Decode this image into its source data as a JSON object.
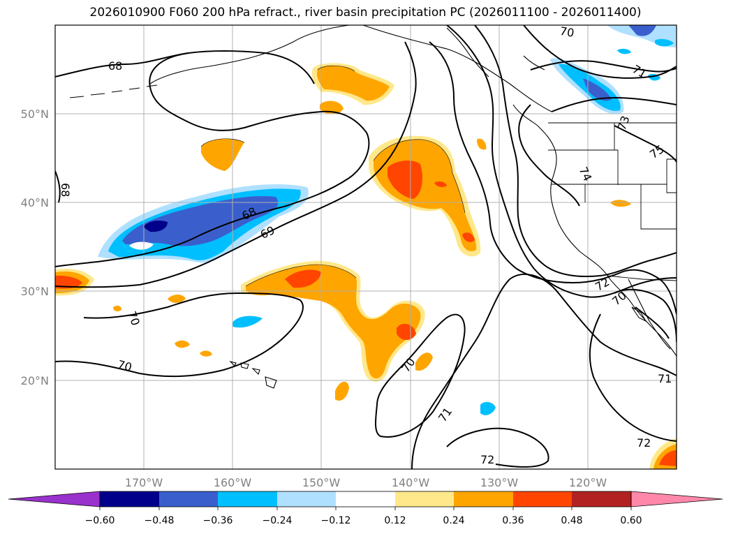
{
  "title": "2026010900 F060 200 hPa refract., river basin precipitation PC (2026011100 - 2026011400)",
  "colors": {
    "neg_060": "#9932cc",
    "neg_048": "#00008b",
    "neg_036": "#3a5fcd",
    "neg_024": "#00bfff",
    "neg_012": "#b0e0ff",
    "zero": "#ffffff",
    "pos_012": "#ffe88a",
    "pos_024": "#ffa500",
    "pos_036": "#ff4500",
    "pos_048": "#b22222",
    "pos_060": "#ff88aa",
    "contour": "#000000",
    "coast": "#000000",
    "grid": "#b0b0b0"
  },
  "axes": {
    "lat_labels": [
      "50°N",
      "40°N",
      "30°N",
      "20°N"
    ],
    "lon_labels": [
      "170°W",
      "160°W",
      "150°W",
      "140°W",
      "130°W",
      "120°W"
    ]
  },
  "contour_labels": [
    "68",
    "68",
    "69",
    "68",
    "70",
    "70",
    "70",
    "70",
    "71",
    "71",
    "72",
    "72",
    "70",
    "71",
    "72",
    "74",
    "75",
    "73"
  ],
  "colorbar": {
    "ticks": [
      "−0.60",
      "−0.48",
      "−0.36",
      "−0.24",
      "−0.12",
      "0.12",
      "0.24",
      "0.36",
      "0.48",
      "0.60"
    ],
    "levels": [
      -0.6,
      -0.48,
      -0.36,
      -0.24,
      -0.12,
      0.12,
      0.24,
      0.36,
      0.48,
      0.6
    ]
  }
}
